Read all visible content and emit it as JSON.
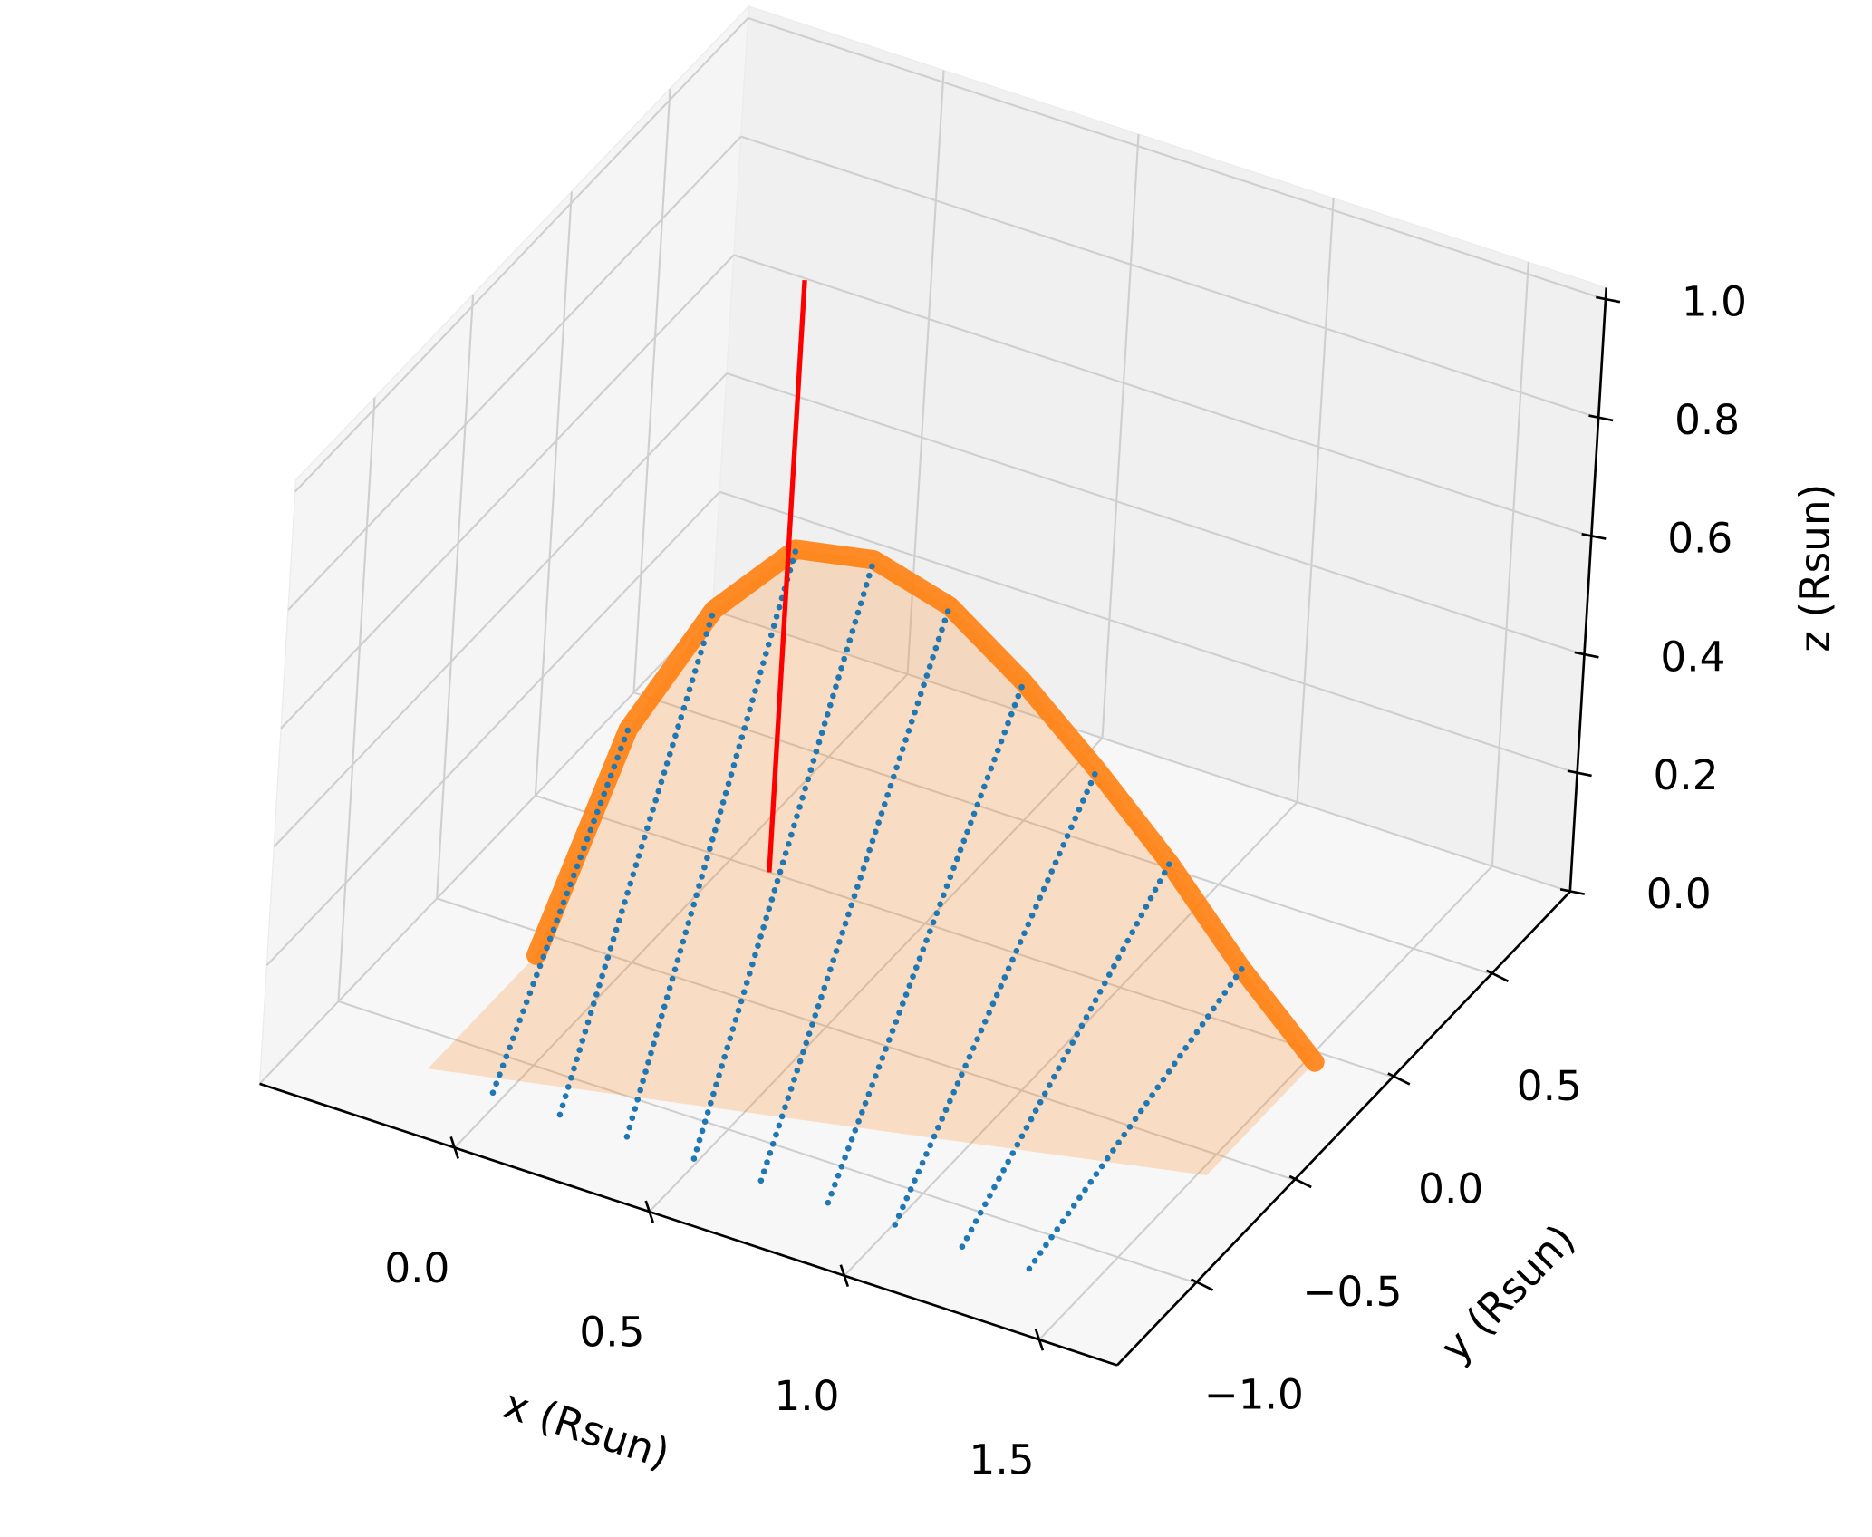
{
  "chart_data": {
    "type": "scatter3d",
    "xlabel": "x (Rsun)",
    "ylabel": "y (Rsun)",
    "zlabel": "z (Rsun)",
    "xlim": [
      -0.5,
      1.7
    ],
    "ylim": [
      -1.4,
      0.9
    ],
    "zlim": [
      0,
      1.02
    ],
    "xticks": [
      {
        "value": 0,
        "label": "0.0"
      },
      0.5,
      {
        "value": 1,
        "label": "1.0"
      },
      1.5
    ],
    "yticks": [
      {
        "value": -1,
        "label": "−1.0"
      },
      {
        "value": -0.5,
        "label": "−0.5"
      },
      {
        "value": 0,
        "label": "0.0"
      },
      0.5
    ],
    "zticks": [
      {
        "value": 0,
        "label": "0.0"
      },
      0.2,
      0.4,
      0.6,
      0.8,
      {
        "value": 1,
        "label": "1.0"
      }
    ],
    "grid": true,
    "series": [
      {
        "style": "line",
        "color": "#ff0000",
        "x": [
          0.1,
          0.1
        ],
        "y": [
          0,
          0
        ],
        "z": [
          0,
          1.0
        ]
      },
      {
        "style": "surface",
        "color": "#ff7f0e",
        "x": [
          -0.2,
          -0.028,
          0.144,
          0.316,
          0.488,
          0.66,
          0.832,
          1.004,
          1.176,
          1.348,
          1.52
        ],
        "y": [
          -0.59,
          -0.535,
          -0.48,
          -0.425,
          -0.37,
          -0.315,
          -0.26,
          -0.205,
          -0.15,
          -0.095,
          -0.04
        ],
        "z": [
          0,
          0.4,
          0.62,
          0.74,
          0.74,
          0.68,
          0.57,
          0.44,
          0.3,
          0.14,
          0
        ]
      },
      {
        "style": "dots",
        "color": "#1f77b4",
        "x": [
          -0.028,
          -0.028
        ],
        "y": [
          -1.15,
          -0.535
        ],
        "z": [
          0,
          0.4
        ]
      },
      {
        "style": "dots",
        "color": "#1f77b4",
        "x": [
          0.144,
          0.144
        ],
        "y": [
          -1.15,
          -0.48
        ],
        "z": [
          0,
          0.62
        ]
      },
      {
        "style": "dots",
        "color": "#1f77b4",
        "x": [
          0.316,
          0.316
        ],
        "y": [
          -1.15,
          -0.425
        ],
        "z": [
          0,
          0.74
        ]
      },
      {
        "style": "dots",
        "color": "#1f77b4",
        "x": [
          0.488,
          0.488
        ],
        "y": [
          -1.15,
          -0.37
        ],
        "z": [
          0,
          0.74
        ]
      },
      {
        "style": "dots",
        "color": "#1f77b4",
        "x": [
          0.66,
          0.66
        ],
        "y": [
          -1.15,
          -0.315
        ],
        "z": [
          0,
          0.68
        ]
      },
      {
        "style": "dots",
        "color": "#1f77b4",
        "x": [
          0.832,
          0.832
        ],
        "y": [
          -1.15,
          -0.26
        ],
        "z": [
          0,
          0.57
        ]
      },
      {
        "style": "dots",
        "color": "#1f77b4",
        "x": [
          1.004,
          1.004
        ],
        "y": [
          -1.15,
          -0.205
        ],
        "z": [
          0,
          0.44
        ]
      },
      {
        "style": "dots",
        "color": "#1f77b4",
        "x": [
          1.176,
          1.176
        ],
        "y": [
          -1.15,
          -0.15
        ],
        "z": [
          0,
          0.3
        ]
      },
      {
        "style": "dots",
        "color": "#1f77b4",
        "x": [
          1.348,
          1.348
        ],
        "y": [
          -1.15,
          -0.095
        ],
        "z": [
          0,
          0.14
        ]
      }
    ]
  }
}
